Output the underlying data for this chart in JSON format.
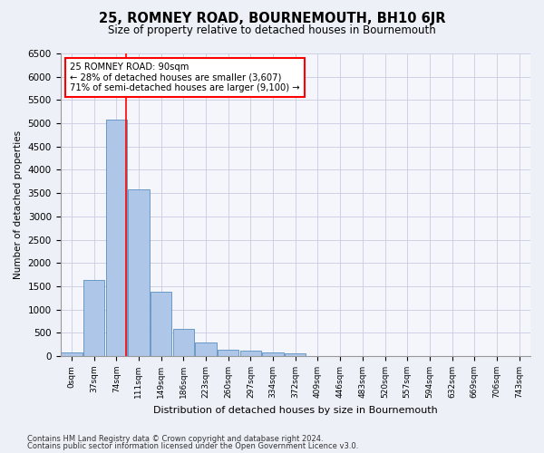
{
  "title": "25, ROMNEY ROAD, BOURNEMOUTH, BH10 6JR",
  "subtitle": "Size of property relative to detached houses in Bournemouth",
  "xlabel": "Distribution of detached houses by size in Bournemouth",
  "ylabel": "Number of detached properties",
  "footer1": "Contains HM Land Registry data © Crown copyright and database right 2024.",
  "footer2": "Contains public sector information licensed under the Open Government Licence v3.0.",
  "bar_labels": [
    "0sqm",
    "37sqm",
    "74sqm",
    "111sqm",
    "149sqm",
    "186sqm",
    "223sqm",
    "260sqm",
    "297sqm",
    "334sqm",
    "372sqm",
    "409sqm",
    "446sqm",
    "483sqm",
    "520sqm",
    "557sqm",
    "594sqm",
    "632sqm",
    "669sqm",
    "706sqm",
    "743sqm"
  ],
  "bar_values": [
    75,
    1630,
    5080,
    3580,
    1390,
    590,
    290,
    145,
    110,
    75,
    60,
    0,
    0,
    0,
    0,
    0,
    0,
    0,
    0,
    0,
    0
  ],
  "bar_color": "#aec6e8",
  "bar_edge_color": "#5a8fc0",
  "ylim": [
    0,
    6500
  ],
  "yticks": [
    0,
    500,
    1000,
    1500,
    2000,
    2500,
    3000,
    3500,
    4000,
    4500,
    5000,
    5500,
    6000,
    6500
  ],
  "property_label": "25 ROMNEY ROAD: 90sqm",
  "annotation_line1": "← 28% of detached houses are smaller (3,607)",
  "annotation_line2": "71% of semi-detached houses are larger (9,100) →",
  "bg_color": "#eef0f8",
  "plot_bg_color": "#f5f6fc",
  "grid_color": "#c8cce0"
}
